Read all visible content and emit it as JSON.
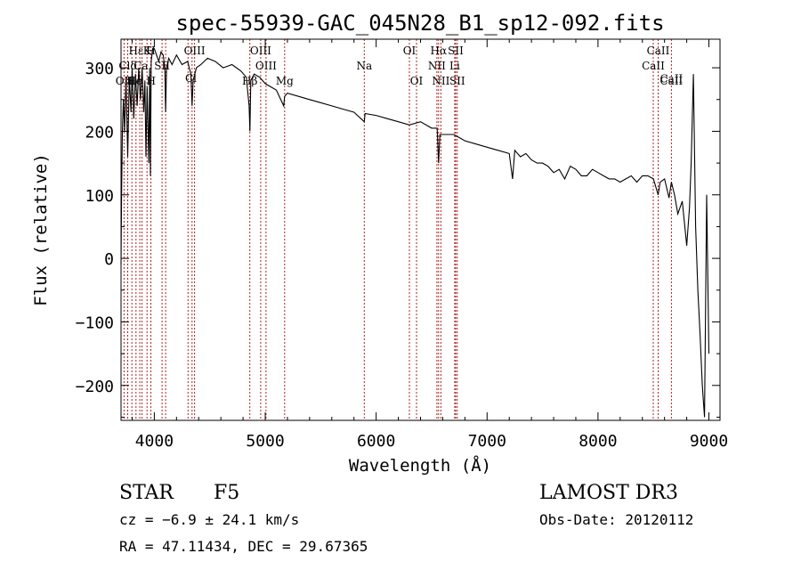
{
  "chart_data": {
    "type": "line",
    "title": "spec-55939-GAC_045N28_B1_sp12-092.fits",
    "xlabel": "Wavelength (Å)",
    "ylabel": "Flux (relative)",
    "xlim": [
      3700,
      9100
    ],
    "ylim": [
      -255,
      345
    ],
    "xticks": [
      4000,
      5000,
      6000,
      7000,
      8000,
      9000
    ],
    "xtick_labels": [
      "4000",
      "5000",
      "6000",
      "7000",
      "8000",
      "9000"
    ],
    "yticks": [
      -200,
      -100,
      0,
      100,
      200,
      300
    ],
    "ytick_labels": [
      "−200",
      "−100",
      "0",
      "100",
      "200",
      "300"
    ],
    "line_color": "#000000",
    "marker_color": "#b22222",
    "series": [
      {
        "name": "flux",
        "x": [
          3700,
          3705,
          3712,
          3722,
          3732,
          3745,
          3760,
          3775,
          3790,
          3800,
          3815,
          3830,
          3845,
          3860,
          3875,
          3890,
          3905,
          3915,
          3925,
          3935,
          3950,
          3958,
          3965,
          3972,
          3985,
          4000,
          4020,
          4040,
          4060,
          4080,
          4095,
          4102,
          4110,
          4130,
          4160,
          4200,
          4250,
          4300,
          4330,
          4340,
          4350,
          4380,
          4420,
          4480,
          4550,
          4620,
          4700,
          4780,
          4830,
          4855,
          4862,
          4870,
          4900,
          4950,
          5000,
          5100,
          5167,
          5175,
          5200,
          5300,
          5400,
          5500,
          5600,
          5700,
          5800,
          5893,
          5900,
          6000,
          6100,
          6200,
          6300,
          6400,
          6500,
          6550,
          6563,
          6575,
          6650,
          6700,
          6800,
          6900,
          7000,
          7100,
          7200,
          7230,
          7250,
          7300,
          7350,
          7400,
          7450,
          7500,
          7550,
          7600,
          7650,
          7700,
          7750,
          7800,
          7850,
          7900,
          7950,
          8000,
          8050,
          8100,
          8150,
          8200,
          8250,
          8300,
          8350,
          8400,
          8450,
          8500,
          8542,
          8560,
          8600,
          8640,
          8662,
          8690,
          8720,
          8760,
          8800,
          8825,
          8840,
          8860,
          8880,
          8900,
          8920,
          8940,
          8960,
          8980,
          9000
        ],
        "y": [
          -10,
          100,
          200,
          250,
          200,
          285,
          160,
          285,
          230,
          300,
          220,
          290,
          240,
          300,
          250,
          300,
          230,
          280,
          160,
          270,
          150,
          300,
          130,
          310,
          330,
          330,
          320,
          310,
          325,
          320,
          300,
          230,
          300,
          315,
          305,
          320,
          305,
          310,
          290,
          240,
          280,
          300,
          305,
          315,
          310,
          300,
          305,
          295,
          285,
          240,
          200,
          280,
          290,
          285,
          275,
          265,
          240,
          255,
          260,
          255,
          250,
          245,
          240,
          235,
          230,
          215,
          228,
          225,
          220,
          215,
          210,
          215,
          205,
          205,
          150,
          195,
          195,
          195,
          185,
          180,
          175,
          170,
          165,
          125,
          170,
          160,
          165,
          155,
          150,
          150,
          145,
          135,
          140,
          125,
          145,
          140,
          130,
          130,
          140,
          135,
          130,
          125,
          125,
          120,
          125,
          130,
          120,
          130,
          130,
          125,
          100,
          120,
          125,
          95,
          120,
          100,
          70,
          90,
          20,
          80,
          150,
          290,
          50,
          -50,
          -120,
          -200,
          -250,
          100,
          -150
        ],
        "annotations": [
          {
            "label": "CaII",
            "x": 8662,
            "y": 277
          },
          {
            "label": "Cl",
            "x": 4330,
            "y": 278
          }
        ]
      }
    ],
    "lines": [
      {
        "label": "Hε",
        "x": 3835,
        "row": 1
      },
      {
        "label": "OII",
        "x": 3727,
        "row": 3
      },
      {
        "label": "Clδ",
        "x": 3760,
        "row": 2
      },
      {
        "label": "He",
        "x": 3820,
        "row": 3
      },
      {
        "label": "K",
        "x": 3934,
        "row": 1
      },
      {
        "label": "H",
        "x": 3969,
        "row": 1
      },
      {
        "label": "Ca",
        "x": 3880,
        "row": 2
      },
      {
        "label": "H",
        "x": 3970,
        "row": 3
      },
      {
        "label": "SII",
        "x": 4070,
        "row": 2
      },
      {
        "label": "OIII",
        "x": 4363,
        "row": 1
      },
      {
        "label": "OIII",
        "x": 4959,
        "row": 1
      },
      {
        "label": "OIII",
        "x": 5007,
        "row": 2
      },
      {
        "label": "Hβ",
        "x": 4861,
        "row": 3
      },
      {
        "label": "Mg",
        "x": 5175,
        "row": 3
      },
      {
        "label": "Na",
        "x": 5893,
        "row": 2
      },
      {
        "label": "OI",
        "x": 6300,
        "row": 1
      },
      {
        "label": "OI",
        "x": 6364,
        "row": 3
      },
      {
        "label": "Hα",
        "x": 6563,
        "row": 1
      },
      {
        "label": "SII",
        "x": 6717,
        "row": 1
      },
      {
        "label": "NII",
        "x": 6548,
        "row": 2
      },
      {
        "label": "Li",
        "x": 6708,
        "row": 2
      },
      {
        "label": "NII",
        "x": 6584,
        "row": 3
      },
      {
        "label": "SII",
        "x": 6731,
        "row": 3
      },
      {
        "label": "CaII",
        "x": 8542,
        "row": 1
      },
      {
        "label": "CaII",
        "x": 8498,
        "row": 2
      },
      {
        "label": "CaII",
        "x": 8662,
        "row": 3
      }
    ],
    "marker_positions": [
      3727,
      3760,
      3798,
      3835,
      3869,
      3889,
      3934,
      3969,
      4070,
      4102,
      4304,
      4340,
      4363,
      4861,
      4959,
      5007,
      5175,
      5893,
      6300,
      6364,
      6548,
      6563,
      6584,
      6708,
      6717,
      6731,
      8498,
      8542,
      8662
    ]
  },
  "info": {
    "class": "STAR",
    "subclass": "F5",
    "survey": "LAMOST DR3",
    "cz": "cz = −6.9 ± 24.1 km/s",
    "obs_date": "Obs-Date: 20120112",
    "coords": "RA =  47.11434, DEC =  29.67365"
  }
}
